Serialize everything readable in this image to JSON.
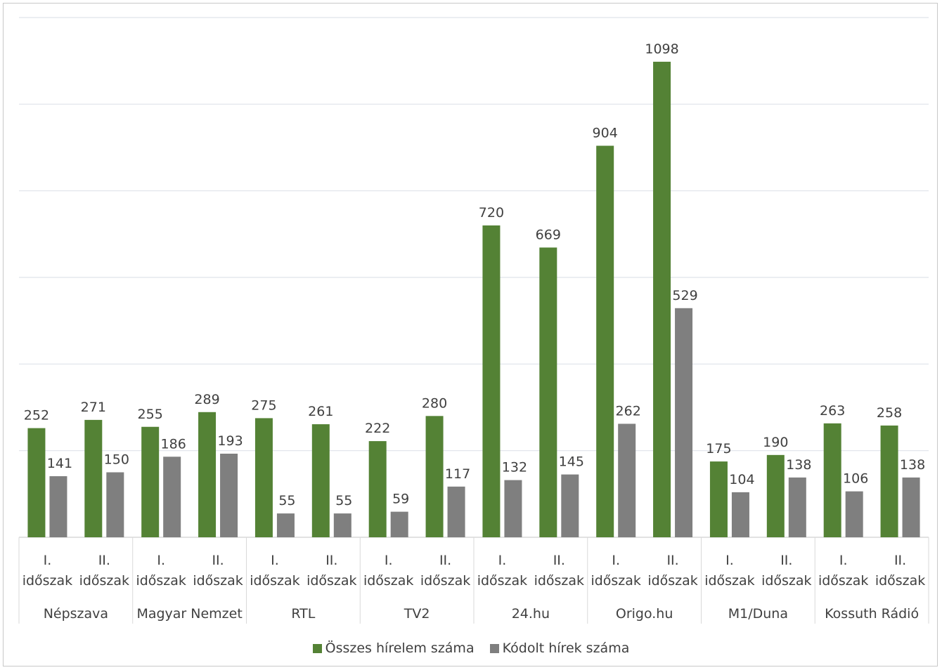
{
  "chart_data": {
    "type": "bar",
    "title": "",
    "xlabel": "",
    "ylabel": "",
    "ylim": [
      0,
      1200
    ],
    "grid": true,
    "legend_position": "bottom",
    "groups": [
      "Népszava",
      "Magyar Nemzet",
      "RTL",
      "TV2",
      "24.hu",
      "Origo.hu",
      "M1/Duna",
      "Kossuth Rádió"
    ],
    "period_labels": [
      [
        "I.",
        "időszak"
      ],
      [
        "II.",
        "időszak"
      ]
    ],
    "series": [
      {
        "name": "Összes hírelem száma",
        "color": "#548235",
        "values": [
          252,
          271,
          255,
          289,
          275,
          261,
          222,
          280,
          720,
          669,
          904,
          1098,
          175,
          190,
          263,
          258
        ]
      },
      {
        "name": "Kódolt hírek száma",
        "color": "#7f7f7f",
        "values": [
          141,
          150,
          186,
          193,
          55,
          55,
          59,
          117,
          132,
          145,
          262,
          529,
          104,
          138,
          106,
          138
        ]
      }
    ]
  }
}
